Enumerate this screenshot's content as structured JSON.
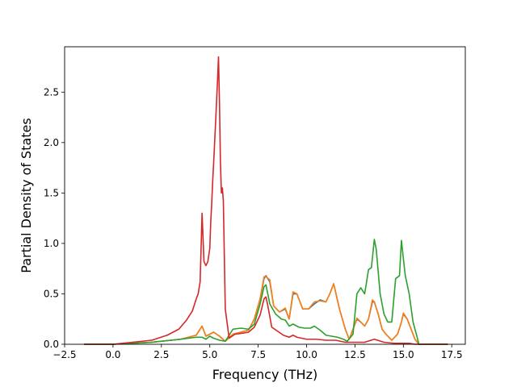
{
  "chart_data": {
    "type": "line",
    "title": "",
    "xlabel": "Frequency (THz)",
    "ylabel": "Partial Density of States",
    "xlim": [
      -2.5,
      18.2
    ],
    "ylim": [
      0.0,
      2.95
    ],
    "xticks": [
      "−2.5",
      "0.0",
      "2.5",
      "5.0",
      "7.5",
      "10.0",
      "12.5",
      "15.0",
      "17.5"
    ],
    "xtick_values": [
      -2.5,
      0.0,
      2.5,
      5.0,
      7.5,
      10.0,
      12.5,
      15.0,
      17.5
    ],
    "yticks": [
      "0.0",
      "0.5",
      "1.0",
      "1.5",
      "2.0",
      "2.5"
    ],
    "ytick_values": [
      0.0,
      0.5,
      1.0,
      1.5,
      2.0,
      2.5
    ],
    "grid": false,
    "legend": "none",
    "series": [
      {
        "color": "#1f77b4",
        "x": [
          -1.5,
          0.0,
          2.0,
          3.5,
          4.3,
          4.6,
          4.8,
          5.0,
          5.2,
          5.5,
          5.8,
          6.2,
          6.6,
          7.0,
          7.3,
          7.6,
          7.8,
          7.9,
          8.1,
          8.3,
          8.6,
          8.9,
          9.1,
          9.3,
          9.5,
          9.8,
          10.1,
          10.4,
          10.7,
          11.0,
          11.2,
          11.4,
          11.7,
          12.0,
          12.2,
          12.4,
          12.6,
          12.8,
          13.0,
          13.2,
          13.4,
          13.5,
          13.7,
          13.9,
          14.1,
          14.4,
          14.7,
          14.9,
          15.0,
          15.2,
          15.4,
          15.6,
          15.8,
          16.5,
          17.3
        ],
        "y": [
          0.0,
          0.0,
          0.02,
          0.05,
          0.09,
          0.18,
          0.08,
          0.1,
          0.12,
          0.08,
          0.03,
          0.1,
          0.12,
          0.14,
          0.25,
          0.45,
          0.65,
          0.68,
          0.62,
          0.38,
          0.32,
          0.35,
          0.25,
          0.5,
          0.5,
          0.35,
          0.35,
          0.4,
          0.44,
          0.42,
          0.5,
          0.6,
          0.35,
          0.15,
          0.05,
          0.15,
          0.25,
          0.22,
          0.18,
          0.25,
          0.42,
          0.42,
          0.3,
          0.15,
          0.1,
          0.04,
          0.1,
          0.22,
          0.3,
          0.25,
          0.15,
          0.05,
          0.0,
          0.0,
          0.0
        ]
      },
      {
        "color": "#ff7f0e",
        "x": [
          -1.5,
          0.0,
          2.0,
          3.5,
          4.3,
          4.6,
          4.8,
          5.0,
          5.2,
          5.5,
          5.8,
          6.2,
          6.6,
          7.0,
          7.3,
          7.6,
          7.8,
          7.9,
          8.1,
          8.3,
          8.6,
          8.9,
          9.1,
          9.3,
          9.5,
          9.8,
          10.1,
          10.4,
          10.7,
          11.0,
          11.2,
          11.4,
          11.7,
          12.0,
          12.2,
          12.4,
          12.6,
          12.8,
          13.0,
          13.2,
          13.4,
          13.5,
          13.7,
          13.9,
          14.1,
          14.4,
          14.7,
          14.9,
          15.0,
          15.2,
          15.4,
          15.6,
          15.8,
          16.5,
          17.3
        ],
        "y": [
          0.0,
          0.0,
          0.02,
          0.05,
          0.09,
          0.18,
          0.08,
          0.1,
          0.12,
          0.08,
          0.03,
          0.1,
          0.12,
          0.14,
          0.25,
          0.45,
          0.67,
          0.67,
          0.64,
          0.38,
          0.32,
          0.36,
          0.25,
          0.52,
          0.5,
          0.35,
          0.35,
          0.42,
          0.43,
          0.42,
          0.5,
          0.6,
          0.35,
          0.15,
          0.05,
          0.15,
          0.26,
          0.22,
          0.18,
          0.25,
          0.44,
          0.42,
          0.3,
          0.15,
          0.1,
          0.04,
          0.1,
          0.22,
          0.31,
          0.25,
          0.15,
          0.05,
          0.0,
          0.0,
          0.0
        ]
      },
      {
        "color": "#2ca02c",
        "x": [
          -1.5,
          0.0,
          2.0,
          3.5,
          4.3,
          4.6,
          4.8,
          5.0,
          5.2,
          5.5,
          5.8,
          6.2,
          6.6,
          7.0,
          7.3,
          7.6,
          7.8,
          7.9,
          8.1,
          8.4,
          8.7,
          8.9,
          9.1,
          9.3,
          9.6,
          9.9,
          10.2,
          10.4,
          10.7,
          11.0,
          11.3,
          11.6,
          11.9,
          12.1,
          12.4,
          12.6,
          12.8,
          13.0,
          13.2,
          13.35,
          13.5,
          13.6,
          13.8,
          14.0,
          14.2,
          14.4,
          14.6,
          14.8,
          14.9,
          15.0,
          15.1,
          15.3,
          15.5,
          15.7,
          15.8,
          16.5,
          17.3
        ],
        "y": [
          0.0,
          0.0,
          0.02,
          0.05,
          0.07,
          0.07,
          0.05,
          0.08,
          0.06,
          0.04,
          0.03,
          0.15,
          0.16,
          0.15,
          0.2,
          0.4,
          0.57,
          0.59,
          0.4,
          0.3,
          0.25,
          0.24,
          0.18,
          0.2,
          0.17,
          0.16,
          0.16,
          0.18,
          0.14,
          0.09,
          0.08,
          0.07,
          0.05,
          0.03,
          0.1,
          0.5,
          0.56,
          0.5,
          0.74,
          0.76,
          1.04,
          0.94,
          0.5,
          0.3,
          0.22,
          0.22,
          0.65,
          0.68,
          1.03,
          0.85,
          0.68,
          0.5,
          0.22,
          0.08,
          0.0,
          0.0,
          0.0
        ]
      },
      {
        "color": "#d62728",
        "x": [
          -1.5,
          0.0,
          1.0,
          2.0,
          2.8,
          3.4,
          3.8,
          4.1,
          4.3,
          4.4,
          4.5,
          4.55,
          4.6,
          4.7,
          4.8,
          4.9,
          5.0,
          5.05,
          5.1,
          5.15,
          5.2,
          5.3,
          5.4,
          5.45,
          5.5,
          5.55,
          5.6,
          5.65,
          5.7,
          5.8,
          6.0,
          6.3,
          6.7,
          7.0,
          7.3,
          7.6,
          7.8,
          7.9,
          8.0,
          8.2,
          8.5,
          8.8,
          9.1,
          9.3,
          9.5,
          10.0,
          10.5,
          11.0,
          11.5,
          12.0,
          12.5,
          13.0,
          13.5,
          14.0,
          14.5,
          15.0,
          15.3,
          15.6,
          16.5,
          17.3
        ],
        "y": [
          0.0,
          0.0,
          0.02,
          0.04,
          0.09,
          0.15,
          0.24,
          0.33,
          0.45,
          0.5,
          0.62,
          0.95,
          1.3,
          0.82,
          0.78,
          0.82,
          0.95,
          1.22,
          1.4,
          1.62,
          1.8,
          2.2,
          2.62,
          2.85,
          2.4,
          1.8,
          1.5,
          1.55,
          1.42,
          0.35,
          0.06,
          0.1,
          0.11,
          0.12,
          0.17,
          0.29,
          0.45,
          0.47,
          0.38,
          0.17,
          0.13,
          0.09,
          0.07,
          0.09,
          0.07,
          0.05,
          0.05,
          0.04,
          0.04,
          0.02,
          0.02,
          0.02,
          0.05,
          0.02,
          0.01,
          0.01,
          0.01,
          0.0,
          0.0,
          0.0
        ]
      }
    ]
  }
}
